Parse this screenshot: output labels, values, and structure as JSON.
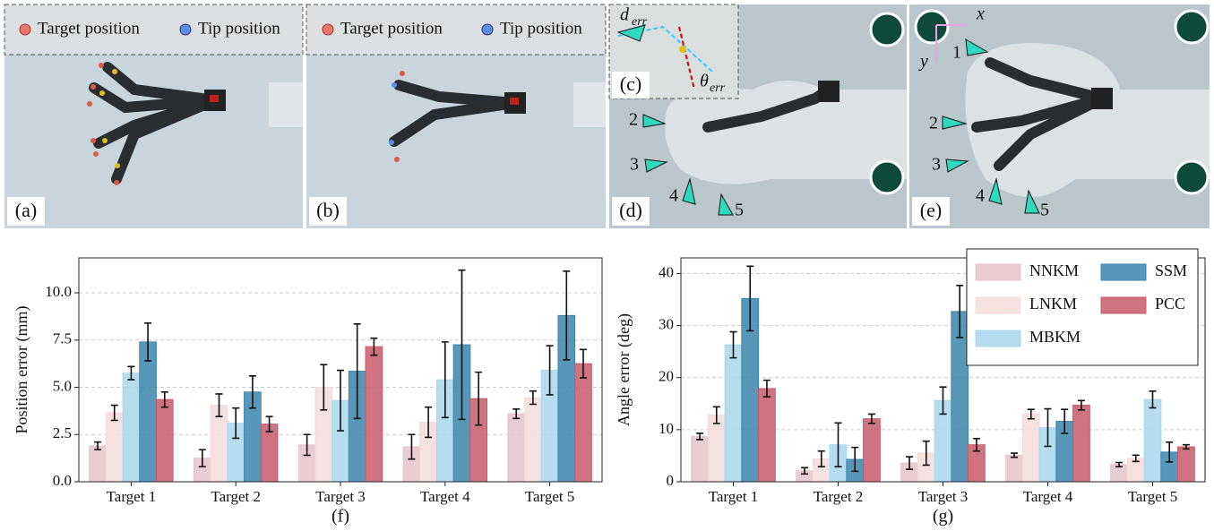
{
  "panels": [
    {
      "label": "(a)",
      "legend": [
        "Target position",
        "Tip position"
      ]
    },
    {
      "label": "(b)",
      "legend": [
        "Target position",
        "Tip position"
      ]
    },
    {
      "label": "(c)",
      "d": "d",
      "d_sub": "err",
      "theta": "θ",
      "theta_sub": "err"
    },
    {
      "label": "(d)",
      "targets": [
        "2",
        "3",
        "4",
        "5"
      ]
    },
    {
      "label": "(e)",
      "targets": [
        "1",
        "2",
        "3",
        "4",
        "5"
      ],
      "axes": [
        "x",
        "y"
      ]
    }
  ],
  "chart_data": [
    {
      "type": "bar",
      "ylabel": "Position error (mm)",
      "xlabel": "(f)",
      "categories": [
        "Target 1",
        "Target 2",
        "Target 3",
        "Target 4",
        "Target 5"
      ],
      "ylim": [
        0,
        11.85
      ],
      "yticks": [
        {
          "value": 0,
          "label": "0.0"
        },
        {
          "value": 2.5,
          "label": "2.5"
        },
        {
          "value": 5,
          "label": "5.0"
        },
        {
          "value": 7.5,
          "label": "7.5"
        },
        {
          "value": 10,
          "label": "10.0"
        }
      ],
      "grid": true,
      "series": [
        {
          "name": "NNKM",
          "color": "#e6c3cb",
          "values": [
            1.9,
            1.25,
            1.95,
            1.85,
            3.6
          ],
          "errors": [
            0.2,
            0.45,
            0.55,
            0.65,
            0.25
          ]
        },
        {
          "name": "LNKM",
          "color": "#f3dcda",
          "values": [
            3.65,
            4.05,
            5.0,
            3.15,
            4.45
          ],
          "errors": [
            0.4,
            0.6,
            1.2,
            0.8,
            0.35
          ]
        },
        {
          "name": "MBKM",
          "color": "#a9d7ec",
          "values": [
            5.75,
            3.1,
            4.3,
            5.4,
            5.9
          ],
          "errors": [
            0.35,
            0.8,
            1.6,
            2.0,
            1.3
          ]
        },
        {
          "name": "SSM",
          "color": "#3b85aa",
          "values": [
            7.4,
            4.75,
            5.85,
            7.25,
            8.8
          ],
          "errors": [
            1.0,
            0.85,
            2.5,
            3.95,
            2.35
          ]
        },
        {
          "name": "PCC",
          "color": "#c85a6a",
          "values": [
            4.35,
            3.05,
            7.15,
            4.4,
            6.25
          ],
          "errors": [
            0.4,
            0.4,
            0.45,
            1.4,
            0.75
          ]
        }
      ]
    },
    {
      "type": "bar",
      "ylabel": "Angle error (deg)",
      "xlabel": "(g)",
      "categories": [
        "Target 1",
        "Target 2",
        "Target 3",
        "Target 4",
        "Target 5"
      ],
      "ylim": [
        0,
        43
      ],
      "yticks": [
        0,
        10,
        20,
        30,
        40
      ],
      "grid": true,
      "legend": "upper right",
      "series": [
        {
          "name": "NNKM",
          "color": "#e6c3cb",
          "values": [
            8.7,
            2.1,
            3.6,
            5.1,
            3.3
          ],
          "errors": [
            0.6,
            0.6,
            1.2,
            0.4,
            0.4
          ]
        },
        {
          "name": "LNKM",
          "color": "#f3dcda",
          "values": [
            12.8,
            4.4,
            5.5,
            13.0,
            4.5
          ],
          "errors": [
            1.6,
            1.5,
            2.3,
            0.9,
            0.6
          ]
        },
        {
          "name": "MBKM",
          "color": "#a9d7ec",
          "values": [
            26.3,
            7.1,
            15.6,
            10.4,
            15.8
          ],
          "errors": [
            2.5,
            4.2,
            2.6,
            3.6,
            1.6
          ]
        },
        {
          "name": "SSM",
          "color": "#3b85aa",
          "values": [
            35.2,
            4.3,
            32.7,
            11.6,
            5.7
          ],
          "errors": [
            6.2,
            2.3,
            5.0,
            2.3,
            1.9
          ]
        },
        {
          "name": "PCC",
          "color": "#c85a6a",
          "values": [
            17.9,
            12.1,
            7.1,
            14.7,
            6.7
          ],
          "errors": [
            1.6,
            0.9,
            1.2,
            0.9,
            0.4
          ]
        }
      ]
    }
  ]
}
